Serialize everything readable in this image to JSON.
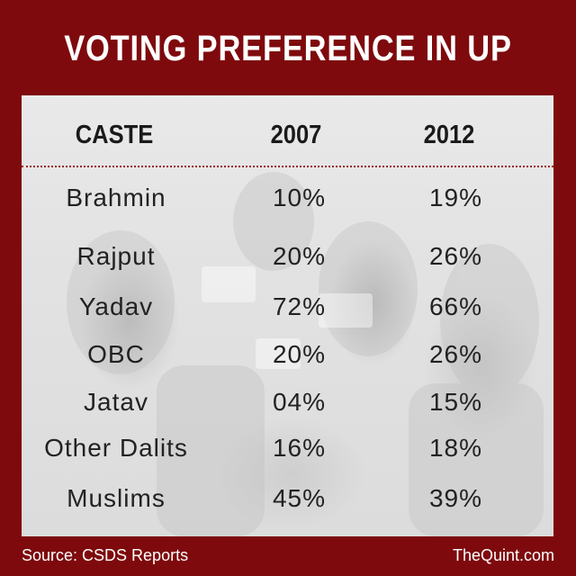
{
  "title": "VOTING PREFERENCE IN UP",
  "colors": {
    "background": "#7e0a0d",
    "panel": "#e4e4e4",
    "divider": "#9b1b1b"
  },
  "chart_data": {
    "type": "table",
    "columns": [
      "CASTE",
      "2007",
      "2012"
    ],
    "rows": [
      {
        "caste": "Brahmin",
        "y2007": "10%",
        "y2012": "19%"
      },
      {
        "caste": "Rajput",
        "y2007": "20%",
        "y2012": "26%"
      },
      {
        "caste": "Yadav",
        "y2007": "72%",
        "y2012": "66%"
      },
      {
        "caste": "OBC",
        "y2007": "20%",
        "y2012": "26%"
      },
      {
        "caste": "Jatav",
        "y2007": "04%",
        "y2012": "15%"
      },
      {
        "caste": "Other Dalits",
        "y2007": "16%",
        "y2012": "18%"
      },
      {
        "caste": "Muslims",
        "y2007": "45%",
        "y2012": "39%"
      }
    ]
  },
  "footer": {
    "source": "Source: CSDS Reports",
    "brand": "TheQuint.com"
  }
}
